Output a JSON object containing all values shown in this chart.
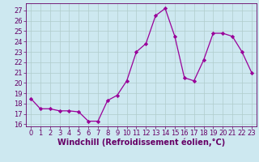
{
  "x": [
    0,
    1,
    2,
    3,
    4,
    5,
    6,
    7,
    8,
    9,
    10,
    11,
    12,
    13,
    14,
    15,
    16,
    17,
    18,
    19,
    20,
    21,
    22,
    23
  ],
  "y": [
    18.5,
    17.5,
    17.5,
    17.3,
    17.3,
    17.2,
    16.3,
    16.3,
    18.3,
    18.8,
    20.2,
    23.0,
    23.8,
    26.5,
    27.2,
    24.5,
    20.5,
    20.2,
    22.2,
    24.8,
    24.8,
    24.5,
    23.0,
    21.0
  ],
  "line_color": "#990099",
  "marker": "D",
  "marker_size": 2.2,
  "bg_color": "#cde8f0",
  "grid_color": "#b0cccc",
  "xlabel": "Windchill (Refroidissement éolien,°C)",
  "xlim": [
    -0.5,
    23.5
  ],
  "ylim": [
    15.8,
    27.7
  ],
  "yticks": [
    16,
    17,
    18,
    19,
    20,
    21,
    22,
    23,
    24,
    25,
    26,
    27
  ],
  "xticks": [
    0,
    1,
    2,
    3,
    4,
    5,
    6,
    7,
    8,
    9,
    10,
    11,
    12,
    13,
    14,
    15,
    16,
    17,
    18,
    19,
    20,
    21,
    22,
    23
  ],
  "font_color": "#660066",
  "tick_font_size": 6.0,
  "label_font_size": 7.0
}
